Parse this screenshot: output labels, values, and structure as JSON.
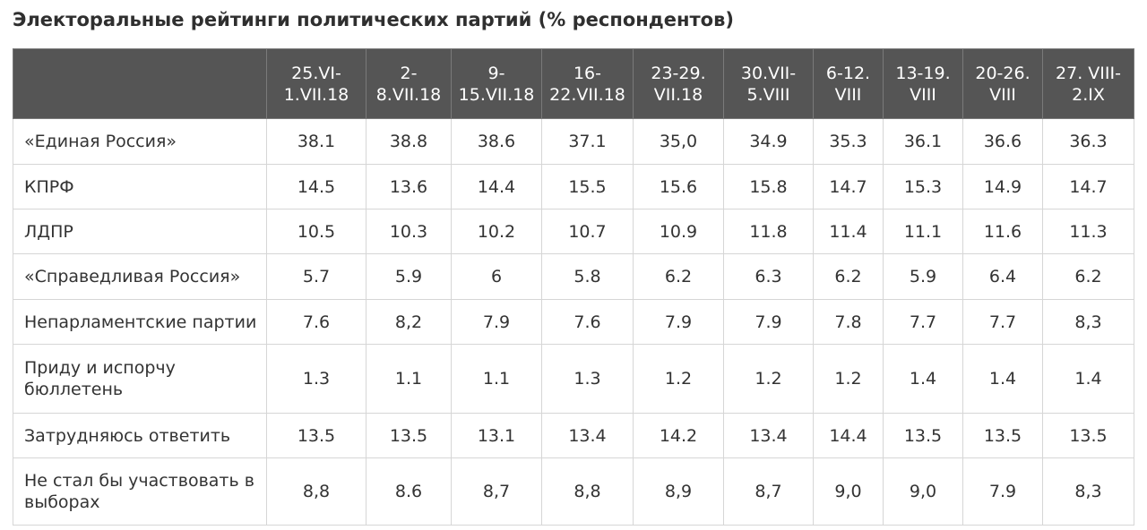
{
  "title": "Электоральные рейтинги политических партий (% респондентов)",
  "chart_data": {
    "type": "table",
    "title": "Электоральные рейтинги политических партий (% респондентов)",
    "columns": [
      [
        "25.VI-",
        "1.VII.18"
      ],
      [
        "2-",
        "8.VII.18"
      ],
      [
        "9-",
        "15.VII.18"
      ],
      [
        "16-",
        "22.VII.18"
      ],
      [
        "23-29.",
        "VII.18"
      ],
      [
        "30.VII-",
        "5.VIII"
      ],
      [
        "6-12.",
        "VIII"
      ],
      [
        "13-19.",
        "VIII"
      ],
      [
        "20-26.",
        "VIII"
      ],
      [
        "27. VIII-",
        "2.IX"
      ]
    ],
    "rows": [
      {
        "party": [
          "«Единая Россия»"
        ],
        "values": [
          "38.1",
          "38.8",
          "38.6",
          "37.1",
          "35,0",
          "34.9",
          "35.3",
          "36.1",
          "36.6",
          "36.3"
        ]
      },
      {
        "party": [
          "КПРФ"
        ],
        "values": [
          "14.5",
          "13.6",
          "14.4",
          "15.5",
          "15.6",
          "15.8",
          "14.7",
          "15.3",
          "14.9",
          "14.7"
        ]
      },
      {
        "party": [
          "ЛДПР"
        ],
        "values": [
          "10.5",
          "10.3",
          "10.2",
          "10.7",
          "10.9",
          "11.8",
          "11.4",
          "11.1",
          "11.6",
          "11.3"
        ]
      },
      {
        "party": [
          "«Справедливая Россия»"
        ],
        "values": [
          "5.7",
          "5.9",
          "6",
          "5.8",
          "6.2",
          "6.3",
          "6.2",
          "5.9",
          "6.4",
          "6.2"
        ]
      },
      {
        "party": [
          "Непарламентские партии"
        ],
        "values": [
          "7.6",
          "8,2",
          "7.9",
          "7.6",
          "7.9",
          "7.9",
          "7.8",
          "7.7",
          "7.7",
          "8,3"
        ]
      },
      {
        "party": [
          "Приду и испорчу",
          "бюллетень"
        ],
        "values": [
          "1.3",
          "1.1",
          "1.1",
          "1.3",
          "1.2",
          "1.2",
          "1.2",
          "1.4",
          "1.4",
          "1.4"
        ]
      },
      {
        "party": [
          "Затрудняюсь ответить"
        ],
        "values": [
          "13.5",
          "13.5",
          "13.1",
          "13.4",
          "14.2",
          "13.4",
          "14.4",
          "13.5",
          "13.5",
          "13.5"
        ]
      },
      {
        "party": [
          "Не стал бы участвовать в",
          "выборах"
        ],
        "values": [
          "8,8",
          "8.6",
          "8,7",
          "8,8",
          "8,9",
          "8,7",
          "9,0",
          "9,0",
          "7.9",
          "8,3"
        ]
      }
    ]
  },
  "colors": {
    "header_bg": "#555555",
    "header_text": "#ffffff",
    "grid": "#d6d6d6",
    "text": "#333333"
  }
}
